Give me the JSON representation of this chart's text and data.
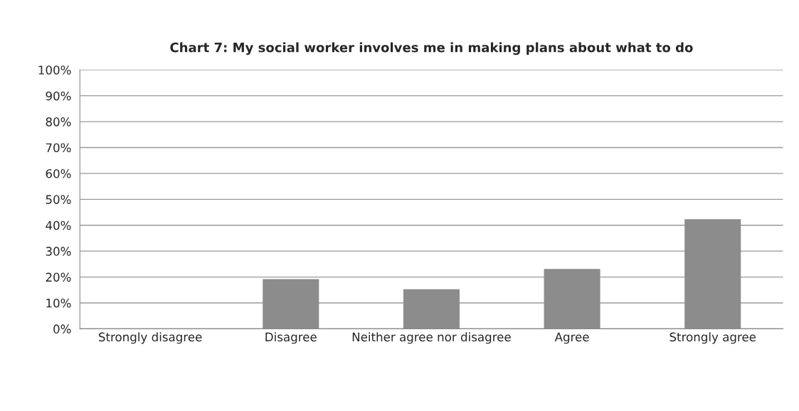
{
  "chart_data": {
    "type": "bar",
    "title": "Chart 7: My social worker involves me in making plans about what to do",
    "categories": [
      "Strongly disagree",
      "Disagree",
      "Neither agree nor disagree",
      "Agree",
      "Strongly agree"
    ],
    "values": [
      0,
      19.2,
      15.3,
      23.1,
      42.3
    ],
    "color": "#8c8c8c",
    "ylim": [
      0,
      100
    ],
    "yticks": [
      {
        "value": 0,
        "label": "0%"
      },
      {
        "value": 10,
        "label": "10%"
      },
      {
        "value": 20,
        "label": "20%"
      },
      {
        "value": 30,
        "label": "30%"
      },
      {
        "value": 40,
        "label": "40%"
      },
      {
        "value": 50,
        "label": "50%"
      },
      {
        "value": 60,
        "label": "60%"
      },
      {
        "value": 70,
        "label": "70%"
      },
      {
        "value": 80,
        "label": "80%"
      },
      {
        "value": 90,
        "label": "90%"
      },
      {
        "value": 100,
        "label": "100%"
      }
    ],
    "grid": "y",
    "legend": false
  }
}
